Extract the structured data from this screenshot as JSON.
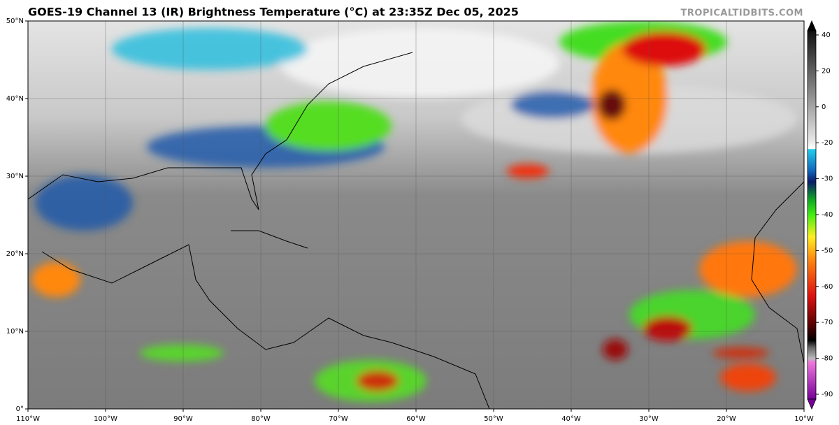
{
  "header": {
    "title": "GOES-19 Channel 13 (IR) Brightness Temperature (°C) at 23:35Z Dec 05, 2025",
    "credit": "TROPICALTIDBITS.COM"
  },
  "map": {
    "lat_labels": [
      "50°N",
      "40°N",
      "30°N",
      "20°N",
      "10°N",
      "0°"
    ],
    "lon_labels": [
      "110°W",
      "100°W",
      "90°W",
      "80°W",
      "70°W",
      "60°W",
      "50°W",
      "40°W",
      "30°W",
      "20°W",
      "10°W"
    ]
  },
  "colorbar": {
    "labels": [
      40,
      20,
      0,
      -20,
      -30,
      -40,
      -50,
      -60,
      -70,
      -80,
      -90
    ]
  }
}
